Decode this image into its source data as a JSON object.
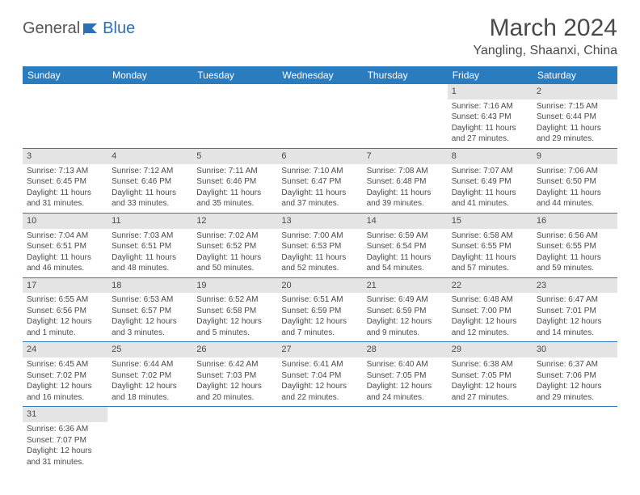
{
  "logo": {
    "general": "General",
    "blue": "Blue"
  },
  "title": "March 2024",
  "location": "Yangling, Shaanxi, China",
  "colors": {
    "header_bg": "#2b7bbf",
    "header_text": "#ffffff",
    "daynum_bg": "#e4e4e4",
    "border": "#2b7bbf",
    "text": "#4a4a4a",
    "logo_blue": "#2b6fb5"
  },
  "weekdays": [
    "Sunday",
    "Monday",
    "Tuesday",
    "Wednesday",
    "Thursday",
    "Friday",
    "Saturday"
  ],
  "weeks": [
    [
      null,
      null,
      null,
      null,
      null,
      {
        "n": "1",
        "sr": "Sunrise: 7:16 AM",
        "ss": "Sunset: 6:43 PM",
        "dl": "Daylight: 11 hours and 27 minutes."
      },
      {
        "n": "2",
        "sr": "Sunrise: 7:15 AM",
        "ss": "Sunset: 6:44 PM",
        "dl": "Daylight: 11 hours and 29 minutes."
      }
    ],
    [
      {
        "n": "3",
        "sr": "Sunrise: 7:13 AM",
        "ss": "Sunset: 6:45 PM",
        "dl": "Daylight: 11 hours and 31 minutes."
      },
      {
        "n": "4",
        "sr": "Sunrise: 7:12 AM",
        "ss": "Sunset: 6:46 PM",
        "dl": "Daylight: 11 hours and 33 minutes."
      },
      {
        "n": "5",
        "sr": "Sunrise: 7:11 AM",
        "ss": "Sunset: 6:46 PM",
        "dl": "Daylight: 11 hours and 35 minutes."
      },
      {
        "n": "6",
        "sr": "Sunrise: 7:10 AM",
        "ss": "Sunset: 6:47 PM",
        "dl": "Daylight: 11 hours and 37 minutes."
      },
      {
        "n": "7",
        "sr": "Sunrise: 7:08 AM",
        "ss": "Sunset: 6:48 PM",
        "dl": "Daylight: 11 hours and 39 minutes."
      },
      {
        "n": "8",
        "sr": "Sunrise: 7:07 AM",
        "ss": "Sunset: 6:49 PM",
        "dl": "Daylight: 11 hours and 41 minutes."
      },
      {
        "n": "9",
        "sr": "Sunrise: 7:06 AM",
        "ss": "Sunset: 6:50 PM",
        "dl": "Daylight: 11 hours and 44 minutes."
      }
    ],
    [
      {
        "n": "10",
        "sr": "Sunrise: 7:04 AM",
        "ss": "Sunset: 6:51 PM",
        "dl": "Daylight: 11 hours and 46 minutes."
      },
      {
        "n": "11",
        "sr": "Sunrise: 7:03 AM",
        "ss": "Sunset: 6:51 PM",
        "dl": "Daylight: 11 hours and 48 minutes."
      },
      {
        "n": "12",
        "sr": "Sunrise: 7:02 AM",
        "ss": "Sunset: 6:52 PM",
        "dl": "Daylight: 11 hours and 50 minutes."
      },
      {
        "n": "13",
        "sr": "Sunrise: 7:00 AM",
        "ss": "Sunset: 6:53 PM",
        "dl": "Daylight: 11 hours and 52 minutes."
      },
      {
        "n": "14",
        "sr": "Sunrise: 6:59 AM",
        "ss": "Sunset: 6:54 PM",
        "dl": "Daylight: 11 hours and 54 minutes."
      },
      {
        "n": "15",
        "sr": "Sunrise: 6:58 AM",
        "ss": "Sunset: 6:55 PM",
        "dl": "Daylight: 11 hours and 57 minutes."
      },
      {
        "n": "16",
        "sr": "Sunrise: 6:56 AM",
        "ss": "Sunset: 6:55 PM",
        "dl": "Daylight: 11 hours and 59 minutes."
      }
    ],
    [
      {
        "n": "17",
        "sr": "Sunrise: 6:55 AM",
        "ss": "Sunset: 6:56 PM",
        "dl": "Daylight: 12 hours and 1 minute."
      },
      {
        "n": "18",
        "sr": "Sunrise: 6:53 AM",
        "ss": "Sunset: 6:57 PM",
        "dl": "Daylight: 12 hours and 3 minutes."
      },
      {
        "n": "19",
        "sr": "Sunrise: 6:52 AM",
        "ss": "Sunset: 6:58 PM",
        "dl": "Daylight: 12 hours and 5 minutes."
      },
      {
        "n": "20",
        "sr": "Sunrise: 6:51 AM",
        "ss": "Sunset: 6:59 PM",
        "dl": "Daylight: 12 hours and 7 minutes."
      },
      {
        "n": "21",
        "sr": "Sunrise: 6:49 AM",
        "ss": "Sunset: 6:59 PM",
        "dl": "Daylight: 12 hours and 9 minutes."
      },
      {
        "n": "22",
        "sr": "Sunrise: 6:48 AM",
        "ss": "Sunset: 7:00 PM",
        "dl": "Daylight: 12 hours and 12 minutes."
      },
      {
        "n": "23",
        "sr": "Sunrise: 6:47 AM",
        "ss": "Sunset: 7:01 PM",
        "dl": "Daylight: 12 hours and 14 minutes."
      }
    ],
    [
      {
        "n": "24",
        "sr": "Sunrise: 6:45 AM",
        "ss": "Sunset: 7:02 PM",
        "dl": "Daylight: 12 hours and 16 minutes."
      },
      {
        "n": "25",
        "sr": "Sunrise: 6:44 AM",
        "ss": "Sunset: 7:02 PM",
        "dl": "Daylight: 12 hours and 18 minutes."
      },
      {
        "n": "26",
        "sr": "Sunrise: 6:42 AM",
        "ss": "Sunset: 7:03 PM",
        "dl": "Daylight: 12 hours and 20 minutes."
      },
      {
        "n": "27",
        "sr": "Sunrise: 6:41 AM",
        "ss": "Sunset: 7:04 PM",
        "dl": "Daylight: 12 hours and 22 minutes."
      },
      {
        "n": "28",
        "sr": "Sunrise: 6:40 AM",
        "ss": "Sunset: 7:05 PM",
        "dl": "Daylight: 12 hours and 24 minutes."
      },
      {
        "n": "29",
        "sr": "Sunrise: 6:38 AM",
        "ss": "Sunset: 7:05 PM",
        "dl": "Daylight: 12 hours and 27 minutes."
      },
      {
        "n": "30",
        "sr": "Sunrise: 6:37 AM",
        "ss": "Sunset: 7:06 PM",
        "dl": "Daylight: 12 hours and 29 minutes."
      }
    ],
    [
      {
        "n": "31",
        "sr": "Sunrise: 6:36 AM",
        "ss": "Sunset: 7:07 PM",
        "dl": "Daylight: 12 hours and 31 minutes."
      },
      null,
      null,
      null,
      null,
      null,
      null
    ]
  ]
}
